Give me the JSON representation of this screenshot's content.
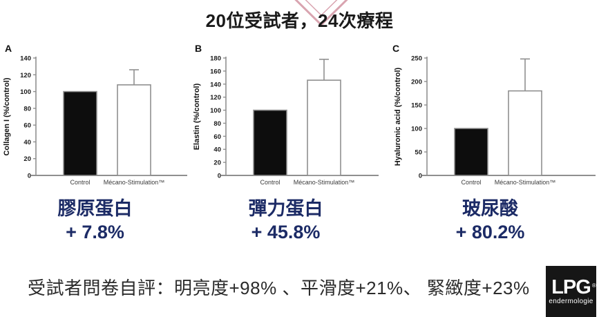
{
  "title": "20位受試者，24次療程",
  "chart_data": [
    {
      "type": "bar",
      "panel": "A",
      "categories": [
        "Control",
        "Mécano-Stimulation™"
      ],
      "values": [
        100,
        108
      ],
      "errors": [
        0,
        18
      ],
      "ylabel": "Collagen I (%/control)",
      "ylim": [
        0,
        140
      ],
      "ytick_step": 20,
      "grid": false,
      "bar_colors": [
        "#0d0d0d",
        "#ffffff"
      ]
    },
    {
      "type": "bar",
      "panel": "B",
      "categories": [
        "Control",
        "Mécano-Stimulation™"
      ],
      "values": [
        100,
        146
      ],
      "errors": [
        0,
        32
      ],
      "ylabel": "Elastin (%/control)",
      "ylim": [
        0,
        180
      ],
      "ytick_step": 20,
      "grid": false,
      "bar_colors": [
        "#0d0d0d",
        "#ffffff"
      ]
    },
    {
      "type": "bar",
      "panel": "C",
      "categories": [
        "Control",
        "Mécano-Stimulation™"
      ],
      "values": [
        100,
        180
      ],
      "errors": [
        0,
        68
      ],
      "ylabel": "Hyaluronic acid (%/control)",
      "ylim": [
        0,
        250
      ],
      "ytick_step": 50,
      "grid": false,
      "bar_colors": [
        "#0d0d0d",
        "#ffffff"
      ]
    }
  ],
  "results": [
    {
      "name": "膠原蛋白",
      "delta": "+ 7.8%"
    },
    {
      "name": "彈力蛋白",
      "delta": "+ 45.8%"
    },
    {
      "name": "玻尿酸",
      "delta": "+ 80.2%"
    }
  ],
  "summary": "受試者問卷自評：明亮度+98% 、平滑度+21%、 緊緻度+23%",
  "logo": {
    "brand": "LPG",
    "reg": "®",
    "sub": "endermologie"
  },
  "colors": {
    "accent_navy": "#1c2b66",
    "axis_gray": "#8f8f8f",
    "bar_black": "#0d0d0d",
    "tick_text": "#1a1a1a",
    "category_text": "#3a3a3a",
    "watermark_pink": "#d9a4b0"
  }
}
